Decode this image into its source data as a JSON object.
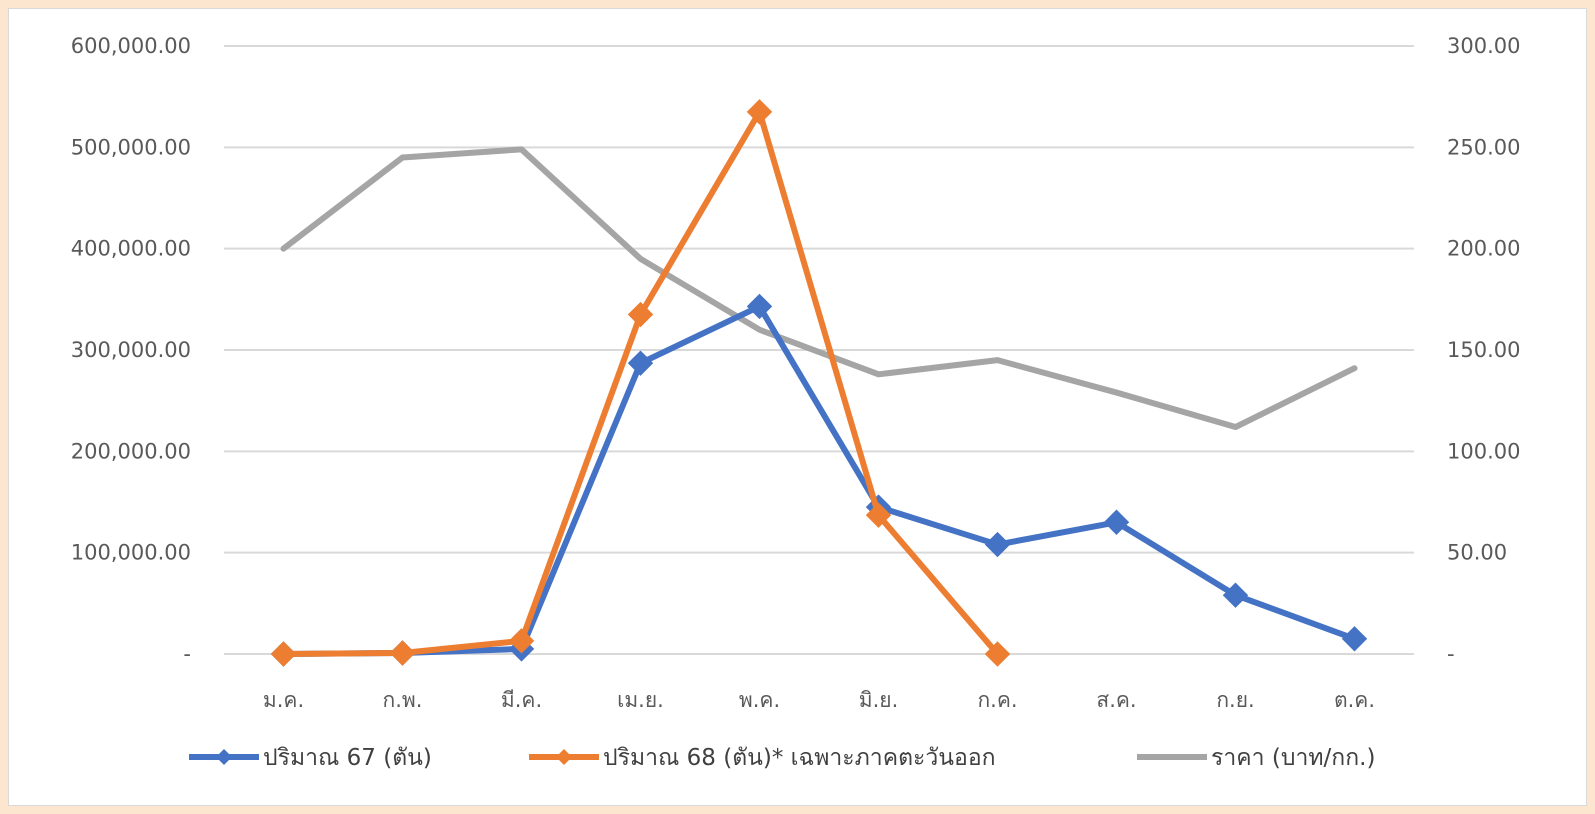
{
  "chart_data": {
    "type": "line",
    "categories": [
      "ม.ค.",
      "ก.พ.",
      "มี.ค.",
      "เม.ย.",
      "พ.ค.",
      "มิ.ย.",
      "ก.ค.",
      "ส.ค.",
      "ก.ย.",
      "ต.ค."
    ],
    "left_axis": {
      "ticks": [
        0,
        100000,
        200000,
        300000,
        400000,
        500000,
        600000
      ],
      "tick_labels": [
        "-",
        "100,000.00",
        "200,000.00",
        "300,000.00",
        "400,000.00",
        "500,000.00",
        "600,000.00"
      ],
      "ylim": [
        0,
        600000
      ]
    },
    "right_axis": {
      "ticks": [
        0,
        50,
        100,
        150,
        200,
        250,
        300
      ],
      "tick_labels": [
        "-",
        "50.00",
        "100.00",
        "150.00",
        "200.00",
        "250.00",
        "300.00"
      ],
      "ylim": [
        0,
        300
      ]
    },
    "grid": true,
    "legend_position": "bottom",
    "series": [
      {
        "name": "ปริมาณ 67 (ตัน)",
        "axis": "left",
        "color": "#4472c4",
        "marker": "diamond",
        "values": [
          0,
          1000,
          5000,
          287000,
          343000,
          145000,
          108000,
          130000,
          58000,
          15000
        ]
      },
      {
        "name": "ปริมาณ 68 (ตัน)* เฉพาะภาคตะวันออก",
        "axis": "left",
        "color": "#ed7d31",
        "marker": "diamond",
        "values": [
          0,
          1000,
          13000,
          335000,
          535000,
          137000,
          0,
          null,
          null,
          null
        ]
      },
      {
        "name": "ราคา (บาท/กก.)",
        "axis": "right",
        "color": "#a5a5a5",
        "marker": "none",
        "values": [
          200,
          245,
          249,
          195,
          160,
          138,
          145,
          129,
          112,
          141
        ]
      }
    ]
  }
}
